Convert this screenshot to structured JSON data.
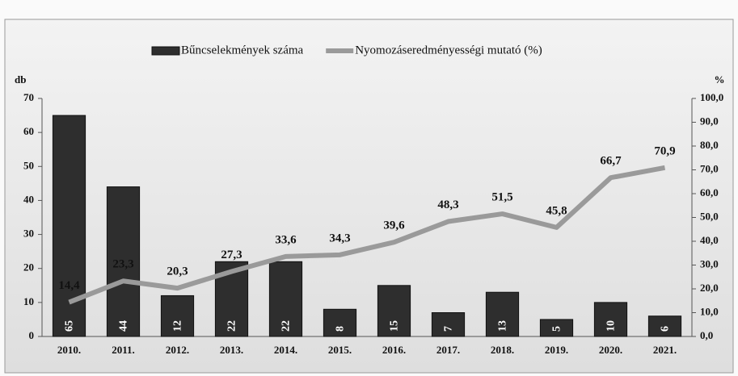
{
  "chart_data": {
    "type": "bar",
    "categories": [
      "2010.",
      "2011.",
      "2012.",
      "2013.",
      "2014.",
      "2015.",
      "2016.",
      "2017.",
      "2018.",
      "2019.",
      "2020.",
      "2021."
    ],
    "series": [
      {
        "name": "Bűncselekmények száma",
        "type": "bar",
        "color": "#2e2e2e",
        "values": [
          65,
          44,
          12,
          22,
          22,
          8,
          15,
          7,
          13,
          5,
          10,
          6
        ]
      },
      {
        "name": "Nyomozáseredményességi mutató (%)",
        "type": "line",
        "axis": "y2",
        "color": "#9a9a9a",
        "values": [
          14.4,
          23.3,
          20.3,
          27.3,
          33.6,
          34.3,
          39.6,
          48.3,
          51.5,
          45.8,
          66.7,
          70.9
        ],
        "value_labels": [
          "14,4",
          "23,3",
          "20,3",
          "27,3",
          "33,6",
          "34,3",
          "39,6",
          "48,3",
          "51,5",
          "45,8",
          "66,7",
          "70,9"
        ]
      }
    ],
    "ylabel": "db",
    "y2label": "%",
    "ylim": [
      0,
      70
    ],
    "yticks": [
      0,
      10,
      20,
      30,
      40,
      50,
      60,
      70
    ],
    "y2lim": [
      0,
      100
    ],
    "y2ticks": [
      {
        "value": 0,
        "label": "0,0"
      },
      {
        "value": 10,
        "label": "10,0"
      },
      {
        "value": 20,
        "label": "20,0"
      },
      {
        "value": 30,
        "label": "30,0"
      },
      {
        "value": 40,
        "label": "40,0"
      },
      {
        "value": 50,
        "label": "50,0"
      },
      {
        "value": 60,
        "label": "60,0"
      },
      {
        "value": 70,
        "label": "70,0"
      },
      {
        "value": 80,
        "label": "80,0"
      },
      {
        "value": 90,
        "label": "90,0"
      },
      {
        "value": 100,
        "label": "100,0"
      }
    ]
  }
}
